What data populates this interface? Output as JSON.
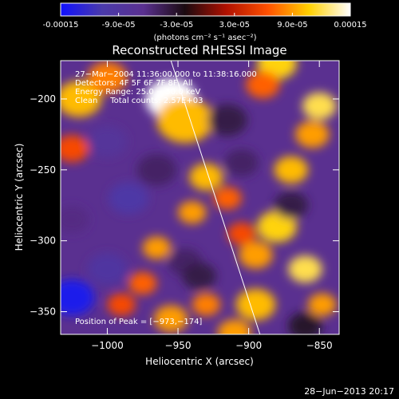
{
  "colorbar": {
    "tick_labels": [
      "-0.00015",
      "-9.0e-05",
      "-3.0e-05",
      "3.0e-05",
      "9.0e-05",
      "0.00015"
    ],
    "tick_values": [
      -0.00015,
      -9e-05,
      -3e-05,
      3e-05,
      9e-05,
      0.00015
    ],
    "range": [
      -0.00015,
      0.00015
    ],
    "units_text": "(photons cm⁻² s⁻¹ asec⁻²)",
    "colors": [
      "#1010ff",
      "#4a3aaa",
      "#5a3090",
      "#1a0a10",
      "#b01000",
      "#ff5000",
      "#ffd000",
      "#ffffff"
    ]
  },
  "chart_data": {
    "type": "heatmap",
    "title": "Reconstructed RHESSI Image",
    "xlabel": "Heliocentric X (arcsec)",
    "ylabel": "Heliocentric Y (arcsec)",
    "xlim": [
      -1033,
      -836
    ],
    "ylim": [
      -366,
      -173
    ],
    "x_ticks": [
      -1000,
      -950,
      -900,
      -850
    ],
    "x_tick_labels": [
      "−1000",
      "−950",
      "−900",
      "−850"
    ],
    "y_ticks": [
      -200,
      -250,
      -300,
      -350
    ],
    "y_tick_labels": [
      "−200",
      "−250",
      "−300",
      "−350"
    ],
    "limb_line": [
      [
        -955,
        -173
      ],
      [
        -892,
        -366
      ]
    ],
    "annotations": [
      "27−Mar−2004 11:36:00.000 to 11:38:16.000",
      "Detectors: 4F 5F 6F 7F 8F, All",
      "Energy Range: 25.0 − 50.0 keV",
      "Clean     Total counts: 2.57E+03"
    ],
    "peak_label": "Position of Peak = [−973,−174]",
    "peak_position": [
      -973,
      -174
    ],
    "blobs": [
      {
        "x": -955,
        "y": -200,
        "v": 0.00015,
        "w": 18
      },
      {
        "x": -945,
        "y": -215,
        "v": 0.0001,
        "w": 20
      },
      {
        "x": -1020,
        "y": -200,
        "v": 0.0001,
        "w": 16
      },
      {
        "x": -1000,
        "y": -185,
        "v": 8e-05,
        "w": 14
      },
      {
        "x": -1025,
        "y": -235,
        "v": 6e-05,
        "w": 12
      },
      {
        "x": -880,
        "y": -175,
        "v": 0.00011,
        "w": 14
      },
      {
        "x": -890,
        "y": -190,
        "v": 7e-05,
        "w": 12
      },
      {
        "x": -850,
        "y": -205,
        "v": 0.00012,
        "w": 12
      },
      {
        "x": -855,
        "y": -225,
        "v": 9e-05,
        "w": 12
      },
      {
        "x": -870,
        "y": -250,
        "v": 0.0001,
        "w": 12
      },
      {
        "x": -880,
        "y": -290,
        "v": 0.00011,
        "w": 14
      },
      {
        "x": -895,
        "y": -310,
        "v": 9e-05,
        "w": 12
      },
      {
        "x": -860,
        "y": -320,
        "v": 0.00012,
        "w": 12
      },
      {
        "x": -848,
        "y": -345,
        "v": 9e-05,
        "w": 10
      },
      {
        "x": -895,
        "y": -345,
        "v": 0.0001,
        "w": 14
      },
      {
        "x": -910,
        "y": -365,
        "v": 9e-05,
        "w": 12
      },
      {
        "x": -930,
        "y": -255,
        "v": 0.0001,
        "w": 12
      },
      {
        "x": -940,
        "y": -280,
        "v": 9e-05,
        "w": 10
      },
      {
        "x": -915,
        "y": -270,
        "v": 7e-05,
        "w": 10
      },
      {
        "x": -905,
        "y": -295,
        "v": 6e-05,
        "w": 10
      },
      {
        "x": -965,
        "y": -305,
        "v": 9e-05,
        "w": 10
      },
      {
        "x": -975,
        "y": -330,
        "v": 7e-05,
        "w": 10
      },
      {
        "x": -955,
        "y": -355,
        "v": 9e-05,
        "w": 12
      },
      {
        "x": -930,
        "y": -345,
        "v": 8e-05,
        "w": 10
      },
      {
        "x": -990,
        "y": -345,
        "v": 6e-05,
        "w": 10
      },
      {
        "x": -1000,
        "y": -230,
        "v": -8e-05,
        "w": 14
      },
      {
        "x": -985,
        "y": -270,
        "v": -0.0001,
        "w": 14
      },
      {
        "x": -1025,
        "y": -340,
        "v": -0.00014,
        "w": 16
      },
      {
        "x": -1000,
        "y": -320,
        "v": -9e-05,
        "w": 14
      },
      {
        "x": -965,
        "y": -250,
        "v": -5e-05,
        "w": 14
      },
      {
        "x": -945,
        "y": -315,
        "v": -5e-05,
        "w": 12
      },
      {
        "x": -915,
        "y": -215,
        "v": -4e-05,
        "w": 14
      },
      {
        "x": -905,
        "y": -245,
        "v": -5e-05,
        "w": 12
      },
      {
        "x": -870,
        "y": -275,
        "v": -4e-05,
        "w": 12
      },
      {
        "x": -935,
        "y": -325,
        "v": -4e-05,
        "w": 12
      },
      {
        "x": -1025,
        "y": -285,
        "v": -6e-05,
        "w": 12
      },
      {
        "x": -860,
        "y": -360,
        "v": -3e-05,
        "w": 12
      }
    ]
  },
  "footer": {
    "date_stamp": "28−Jun−2013 20:17"
  }
}
